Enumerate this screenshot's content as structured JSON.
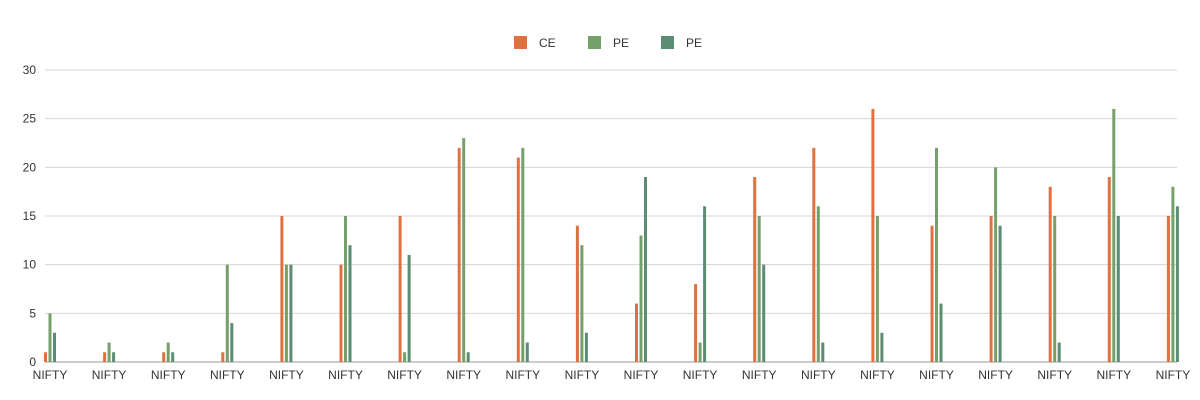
{
  "chart_data": {
    "type": "bar",
    "title": "",
    "xlabel": "",
    "ylabel": "",
    "ylim": [
      0,
      30
    ],
    "yticks": [
      0,
      5,
      10,
      15,
      20,
      25,
      30
    ],
    "grid": true,
    "legend_position": "top-center",
    "categories": [
      "NIFTY",
      "NIFTY",
      "NIFTY",
      "NIFTY",
      "NIFTY",
      "NIFTY",
      "NIFTY",
      "NIFTY",
      "NIFTY",
      "NIFTY",
      "NIFTY",
      "NIFTY",
      "NIFTY",
      "NIFTY",
      "NIFTY",
      "NIFTY",
      "NIFTY",
      "NIFTY",
      "NIFTY",
      "NIFTY"
    ],
    "series": [
      {
        "name": "CE",
        "color": "#e07040",
        "values": [
          1,
          1,
          1,
          1,
          15,
          10,
          15,
          22,
          21,
          14,
          6,
          8,
          19,
          22,
          26,
          14,
          15,
          18,
          19,
          15
        ]
      },
      {
        "name": "PE",
        "color": "#76a06a",
        "values": [
          5,
          2,
          2,
          10,
          10,
          15,
          1,
          23,
          22,
          12,
          13,
          2,
          15,
          16,
          15,
          22,
          20,
          15,
          26,
          18
        ]
      },
      {
        "name": "PE",
        "color": "#5a8d72",
        "values": [
          3,
          1,
          1,
          4,
          10,
          12,
          11,
          1,
          2,
          3,
          19,
          16,
          10,
          2,
          3,
          6,
          14,
          2,
          15,
          16
        ]
      }
    ]
  }
}
